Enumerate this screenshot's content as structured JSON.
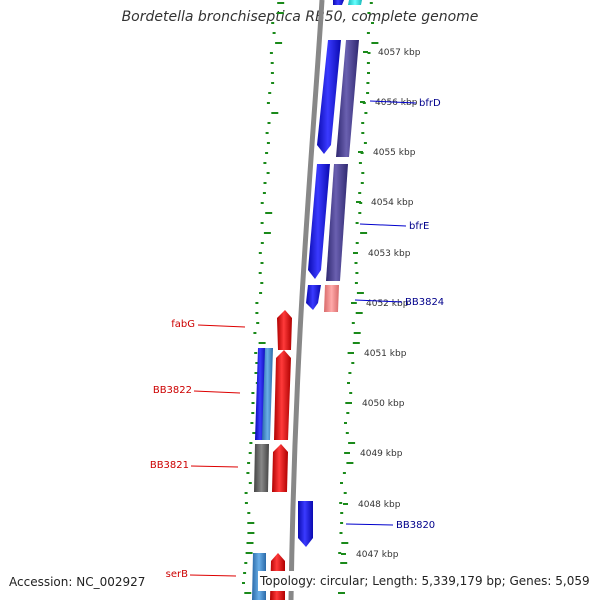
{
  "title": "Bordetella bronchiseptica RB50, complete genome",
  "footer": {
    "accession": "Accession: NC_002927",
    "summary": "Topology: circular; Length: 5,339,179 bp; Genes: 5,059"
  },
  "colors": {
    "forward_gene": "#1414e6",
    "reverse_gene": "#ee1111",
    "protein_forward": "#4a3f8c",
    "protein_reverse": "#ee1111",
    "pseudo_light_blue": "#4a8fd0",
    "pink_feature": "#ee8888",
    "grey_feature": "#666666",
    "cyan_feature": "#22dddd",
    "gc_skew_dots": "#1a8a1a",
    "backbone": "#888888",
    "label_forward": "#00008b",
    "label_reverse": "#cc0000"
  },
  "ticks": [
    "4057 kbp",
    "4056 kbp",
    "4055 kbp",
    "4054 kbp",
    "4053 kbp",
    "4052 kbp",
    "4051 kbp",
    "4050 kbp",
    "4049 kbp",
    "4048 kbp",
    "4047 kbp"
  ],
  "gene_labels": [
    {
      "name": "bfrD",
      "strand": "forward"
    },
    {
      "name": "bfrE",
      "strand": "forward"
    },
    {
      "name": "BB3824",
      "strand": "forward"
    },
    {
      "name": "BB3820",
      "strand": "forward"
    },
    {
      "name": "fabG",
      "strand": "reverse"
    },
    {
      "name": "BB3822",
      "strand": "reverse"
    },
    {
      "name": "BB3821",
      "strand": "reverse"
    },
    {
      "name": "serB",
      "strand": "reverse"
    }
  ]
}
